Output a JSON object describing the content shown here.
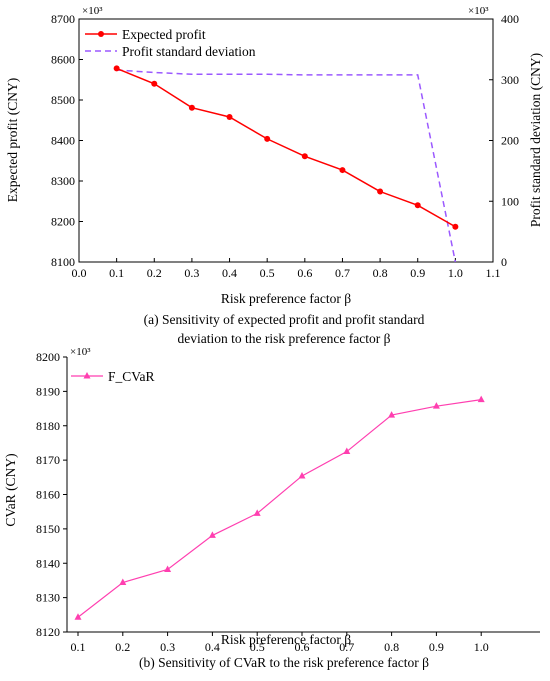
{
  "chart_data": [
    {
      "type": "line",
      "caption_line1": "(a) Sensitivity of expected profit and profit standard",
      "caption_line2": "deviation to the risk preference factor β",
      "xlabel": "Risk preference factor β",
      "ylabel": "Expected profit (CNY)",
      "y2label": "Profit standard deviation (CNY)",
      "y_multiplier": "×10³",
      "y2_multiplier": "×10³",
      "xlim": [
        0.0,
        1.1
      ],
      "ylim": [
        8100,
        8700
      ],
      "y2lim": [
        0,
        400
      ],
      "x_ticks": [
        "0.0",
        "0.1",
        "0.2",
        "0.3",
        "0.4",
        "0.5",
        "0.6",
        "0.7",
        "0.8",
        "0.9",
        "1.0",
        "1.1"
      ],
      "y_ticks": [
        "8100",
        "8200",
        "8300",
        "8400",
        "8500",
        "8600",
        "8700"
      ],
      "y2_ticks": [
        "0",
        "100",
        "200",
        "300",
        "400"
      ],
      "legend_position": "top-left",
      "series": [
        {
          "name": "Expected profit",
          "axis": "left",
          "color": "#ff0000",
          "style": "solid",
          "marker": "circle",
          "x": [
            0.1,
            0.2,
            0.3,
            0.4,
            0.5,
            0.6,
            0.7,
            0.8,
            0.9,
            1.0
          ],
          "values": [
            8578,
            8540,
            8481,
            8458,
            8404,
            8361,
            8327,
            8274,
            8240,
            8187
          ]
        },
        {
          "name": "Profit standard deviation",
          "axis": "right",
          "color": "#9b59ff",
          "style": "dashed",
          "marker": "none",
          "x": [
            0.1,
            0.2,
            0.3,
            0.4,
            0.5,
            0.6,
            0.7,
            0.8,
            0.9,
            1.0
          ],
          "values": [
            316,
            312,
            309,
            309,
            309,
            308,
            308,
            308,
            308,
            0
          ]
        }
      ]
    },
    {
      "type": "line",
      "caption_line1": "(b) Sensitivity of CVaR to the risk preference factor β",
      "xlabel": "Risk preference factor β",
      "ylabel": "CVaR (CNY)",
      "y_multiplier": "×10³",
      "ylim": [
        8120,
        8200
      ],
      "categories": [
        "0.1",
        "0.2",
        "0.3",
        "0.4",
        "0.5",
        "0.6",
        "0.7",
        "0.8",
        "0.9",
        "1.0"
      ],
      "y_ticks": [
        "8120",
        "8130",
        "8140",
        "8150",
        "8160",
        "8170",
        "8180",
        "8190",
        "8200"
      ],
      "legend_position": "top-left",
      "series": [
        {
          "name": "F_CVaR",
          "color": "#ff3fb0",
          "style": "solid",
          "marker": "triangle",
          "values": [
            8124.3,
            8134.4,
            8138.2,
            8148.1,
            8154.5,
            8165.4,
            8172.5,
            8183.1,
            8185.7,
            8187.6
          ]
        }
      ]
    }
  ]
}
